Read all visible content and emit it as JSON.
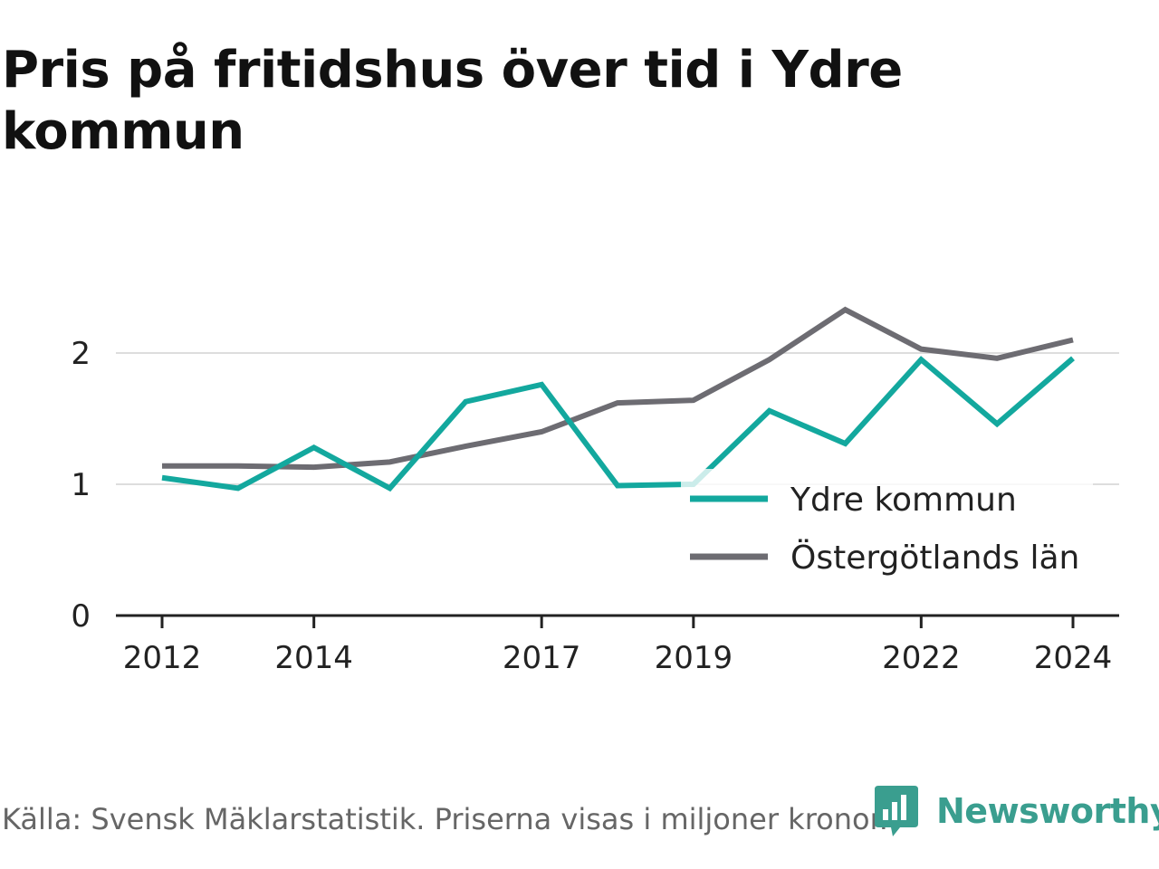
{
  "title": "Pris på fritidshus över tid i Ydre kommun",
  "footer": {
    "source": "Källa: Svensk Mäklarstatistik. Priserna visas i miljoner kronor."
  },
  "brand": {
    "name": "Newsworthy",
    "logo_icon": "newsworthy-bar-chart-logo",
    "color": "#3a9e8f"
  },
  "chart_data": {
    "type": "line",
    "x": [
      2012,
      2013,
      2014,
      2015,
      2016,
      2017,
      2018,
      2019,
      2020,
      2021,
      2022,
      2023,
      2024
    ],
    "x_tick_labels": [
      "2012",
      "2014",
      "2017",
      "2019",
      "2022",
      "2024"
    ],
    "y_ticks": [
      0,
      1,
      2
    ],
    "ylim": [
      0,
      2.5
    ],
    "grid": "horizontal",
    "legend_position": "bottom-right",
    "series": [
      {
        "name": "Ydre kommun",
        "color": "#13a89e",
        "values": [
          1.05,
          0.97,
          1.28,
          0.97,
          1.63,
          1.76,
          0.99,
          1.0,
          1.56,
          1.31,
          1.95,
          1.46,
          1.96
        ]
      },
      {
        "name": "Östergötlands län",
        "color": "#6d6c72",
        "values": [
          1.14,
          1.14,
          1.13,
          1.17,
          1.29,
          1.4,
          1.62,
          1.64,
          1.95,
          2.33,
          2.03,
          1.96,
          2.1
        ]
      }
    ]
  }
}
